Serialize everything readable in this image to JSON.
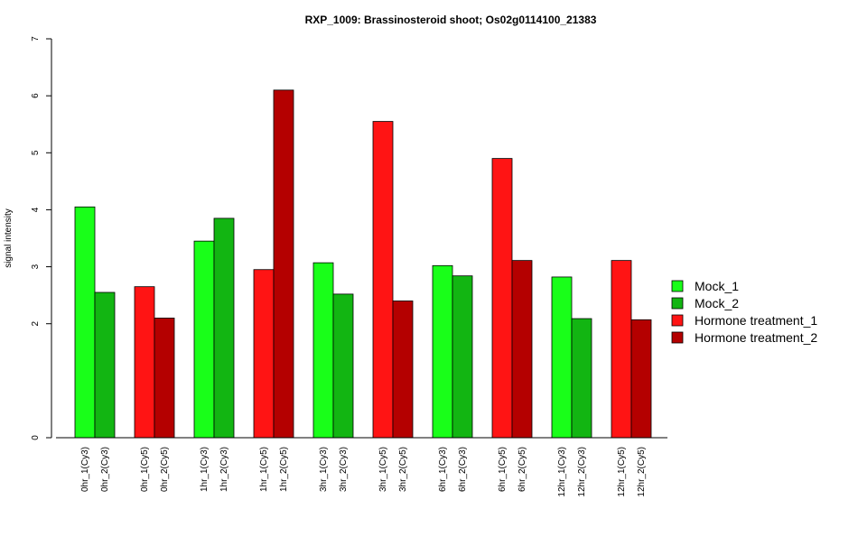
{
  "chart_data": {
    "type": "bar",
    "title": "RXP_1009: Brassinosteroid shoot; Os02g0114100_21383",
    "xlabel": "",
    "ylabel": "signal intensity",
    "ylim": [
      0,
      7
    ],
    "yticks": [
      0,
      2,
      3,
      4,
      5,
      6,
      7
    ],
    "grid": false,
    "legend_position": "right",
    "categories": [
      "0hr_1(Cy3)",
      "0hr_2(Cy3)",
      "0hr_1(Cy5)",
      "0hr_2(Cy5)",
      "1hr_1(Cy3)",
      "1hr_2(Cy3)",
      "1hr_1(Cy5)",
      "1hr_2(Cy5)",
      "3hr_1(Cy3)",
      "3hr_2(Cy3)",
      "3hr_1(Cy5)",
      "3hr_2(Cy5)",
      "6hr_1(Cy3)",
      "6hr_2(Cy3)",
      "6hr_1(Cy5)",
      "6hr_2(Cy5)",
      "12hr_1(Cy3)",
      "12hr_2(Cy3)",
      "12hr_1(Cy5)",
      "12hr_2(Cy5)"
    ],
    "values": [
      4.05,
      2.55,
      2.65,
      2.1,
      3.45,
      3.85,
      2.95,
      6.1,
      3.07,
      2.52,
      5.55,
      2.4,
      3.02,
      2.84,
      4.9,
      3.11,
      2.82,
      2.09,
      3.11,
      2.07
    ],
    "bar_series": [
      0,
      1,
      2,
      3,
      0,
      1,
      2,
      3,
      0,
      1,
      2,
      3,
      0,
      1,
      2,
      3,
      0,
      1,
      2,
      3
    ],
    "series": [
      {
        "name": "Mock_1",
        "color": "#19ff19"
      },
      {
        "name": "Mock_2",
        "color": "#12b512"
      },
      {
        "name": "Hormone treatment_1",
        "color": "#ff1414"
      },
      {
        "name": "Hormone treatment_2",
        "color": "#b40000"
      }
    ]
  }
}
